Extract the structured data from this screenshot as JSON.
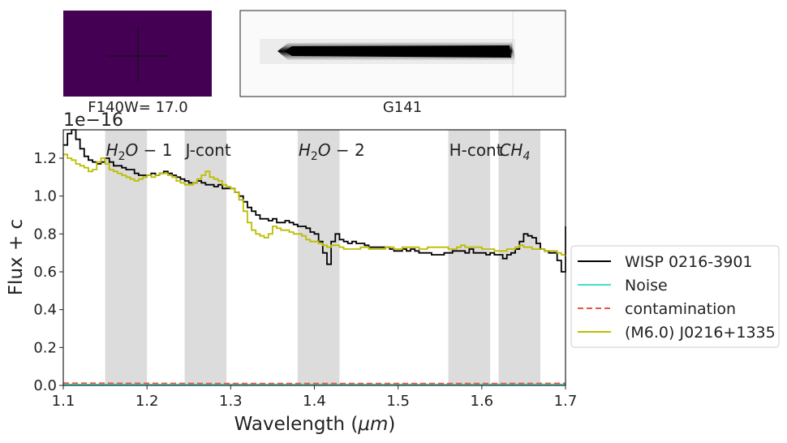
{
  "thumbnails": {
    "direct_label": "F140W= 17.0",
    "grism_label": "G141"
  },
  "chart_data": {
    "type": "line",
    "title": "",
    "xlabel": "Wavelength ($\\mu m$)",
    "ylabel": "Flux + c",
    "offset_text": "1e−16",
    "xlim": [
      1.1,
      1.7
    ],
    "ylim": [
      0.0,
      1.35
    ],
    "xticks": [
      "1.1",
      "1.2",
      "1.3",
      "1.4",
      "1.5",
      "1.6",
      "1.7"
    ],
    "yticks": [
      "0.0",
      "0.2",
      "0.4",
      "0.6",
      "0.8",
      "1.0",
      "1.2"
    ],
    "grid": false,
    "legend_position": "right-outside",
    "bands": [
      {
        "label": "H2O − 1",
        "range": [
          1.15,
          1.2
        ]
      },
      {
        "label": "J-cont",
        "range": [
          1.245,
          1.295
        ]
      },
      {
        "label": "H2O − 2",
        "range": [
          1.38,
          1.43
        ]
      },
      {
        "label": "H-cont",
        "range": [
          1.56,
          1.61
        ]
      },
      {
        "label": "CH4",
        "range": [
          1.62,
          1.67
        ]
      }
    ],
    "series": [
      {
        "name": "WISP 0216-3901",
        "color": "#000000",
        "style": "step",
        "x": [
          1.1,
          1.105,
          1.11,
          1.115,
          1.12,
          1.125,
          1.13,
          1.135,
          1.14,
          1.145,
          1.15,
          1.155,
          1.16,
          1.165,
          1.17,
          1.175,
          1.18,
          1.185,
          1.19,
          1.195,
          1.2,
          1.205,
          1.21,
          1.215,
          1.22,
          1.225,
          1.23,
          1.235,
          1.24,
          1.245,
          1.25,
          1.255,
          1.26,
          1.265,
          1.27,
          1.275,
          1.28,
          1.285,
          1.29,
          1.295,
          1.3,
          1.305,
          1.31,
          1.315,
          1.32,
          1.325,
          1.33,
          1.335,
          1.34,
          1.345,
          1.35,
          1.355,
          1.36,
          1.365,
          1.37,
          1.375,
          1.38,
          1.385,
          1.39,
          1.395,
          1.4,
          1.405,
          1.41,
          1.415,
          1.42,
          1.425,
          1.43,
          1.435,
          1.44,
          1.445,
          1.45,
          1.455,
          1.46,
          1.465,
          1.47,
          1.475,
          1.48,
          1.485,
          1.49,
          1.495,
          1.5,
          1.505,
          1.51,
          1.515,
          1.52,
          1.525,
          1.53,
          1.535,
          1.54,
          1.545,
          1.55,
          1.555,
          1.56,
          1.565,
          1.57,
          1.575,
          1.58,
          1.585,
          1.59,
          1.595,
          1.6,
          1.605,
          1.61,
          1.615,
          1.62,
          1.625,
          1.63,
          1.635,
          1.64,
          1.645,
          1.65,
          1.655,
          1.66,
          1.665,
          1.67,
          1.675,
          1.68,
          1.685,
          1.69,
          1.695,
          1.7
        ],
        "y": [
          1.27,
          1.33,
          1.35,
          1.3,
          1.25,
          1.21,
          1.19,
          1.18,
          1.17,
          1.18,
          1.2,
          1.18,
          1.16,
          1.16,
          1.15,
          1.14,
          1.14,
          1.12,
          1.11,
          1.11,
          1.11,
          1.12,
          1.11,
          1.12,
          1.13,
          1.12,
          1.11,
          1.1,
          1.09,
          1.08,
          1.07,
          1.07,
          1.08,
          1.07,
          1.06,
          1.06,
          1.05,
          1.06,
          1.04,
          1.04,
          1.04,
          1.02,
          1.0,
          0.97,
          0.94,
          0.92,
          0.9,
          0.88,
          0.88,
          0.87,
          0.88,
          0.86,
          0.86,
          0.87,
          0.86,
          0.85,
          0.84,
          0.84,
          0.83,
          0.81,
          0.8,
          0.76,
          0.7,
          0.64,
          0.76,
          0.8,
          0.77,
          0.76,
          0.75,
          0.76,
          0.75,
          0.75,
          0.74,
          0.73,
          0.73,
          0.73,
          0.73,
          0.73,
          0.72,
          0.71,
          0.71,
          0.72,
          0.71,
          0.72,
          0.71,
          0.7,
          0.7,
          0.7,
          0.69,
          0.69,
          0.69,
          0.7,
          0.7,
          0.71,
          0.71,
          0.71,
          0.7,
          0.72,
          0.7,
          0.7,
          0.7,
          0.69,
          0.7,
          0.69,
          0.69,
          0.67,
          0.69,
          0.7,
          0.72,
          0.76,
          0.8,
          0.79,
          0.78,
          0.75,
          0.72,
          0.71,
          0.7,
          0.7,
          0.66,
          0.6,
          0.84
        ]
      },
      {
        "name": "Noise",
        "color": "#40e0d0",
        "style": "step",
        "x": [
          1.1,
          1.2,
          1.3,
          1.4,
          1.5,
          1.6,
          1.7
        ],
        "y": [
          0.005,
          0.005,
          0.005,
          0.005,
          0.005,
          0.006,
          0.008
        ]
      },
      {
        "name": "contamination",
        "color": "#e8543f",
        "style": "dashed",
        "x": [
          1.1,
          1.2,
          1.3,
          1.4,
          1.5,
          1.6,
          1.7
        ],
        "y": [
          0.012,
          0.011,
          0.01,
          0.01,
          0.01,
          0.01,
          0.011
        ]
      },
      {
        "name": "(M6.0) J0216+1335",
        "color": "#bdbd00",
        "style": "step",
        "x": [
          1.1,
          1.105,
          1.11,
          1.115,
          1.12,
          1.125,
          1.13,
          1.135,
          1.14,
          1.145,
          1.15,
          1.155,
          1.16,
          1.165,
          1.17,
          1.175,
          1.18,
          1.185,
          1.19,
          1.195,
          1.2,
          1.205,
          1.21,
          1.215,
          1.22,
          1.225,
          1.23,
          1.235,
          1.24,
          1.245,
          1.25,
          1.255,
          1.26,
          1.265,
          1.27,
          1.275,
          1.28,
          1.285,
          1.29,
          1.295,
          1.3,
          1.305,
          1.31,
          1.315,
          1.32,
          1.325,
          1.33,
          1.335,
          1.34,
          1.345,
          1.35,
          1.355,
          1.36,
          1.365,
          1.37,
          1.375,
          1.38,
          1.385,
          1.39,
          1.395,
          1.4,
          1.405,
          1.41,
          1.415,
          1.42,
          1.425,
          1.43,
          1.435,
          1.44,
          1.445,
          1.45,
          1.455,
          1.46,
          1.465,
          1.47,
          1.475,
          1.48,
          1.485,
          1.49,
          1.495,
          1.5,
          1.505,
          1.51,
          1.515,
          1.52,
          1.525,
          1.53,
          1.535,
          1.54,
          1.545,
          1.55,
          1.555,
          1.56,
          1.565,
          1.57,
          1.575,
          1.58,
          1.585,
          1.59,
          1.595,
          1.6,
          1.605,
          1.61,
          1.615,
          1.62,
          1.625,
          1.63,
          1.635,
          1.64,
          1.645,
          1.65,
          1.655,
          1.66,
          1.665,
          1.67,
          1.675,
          1.68,
          1.685,
          1.69,
          1.695,
          1.7
        ],
        "y": [
          1.22,
          1.2,
          1.19,
          1.17,
          1.16,
          1.15,
          1.13,
          1.14,
          1.18,
          1.2,
          1.17,
          1.14,
          1.13,
          1.12,
          1.11,
          1.1,
          1.09,
          1.08,
          1.09,
          1.1,
          1.11,
          1.1,
          1.11,
          1.12,
          1.12,
          1.11,
          1.1,
          1.08,
          1.07,
          1.06,
          1.06,
          1.07,
          1.09,
          1.11,
          1.13,
          1.1,
          1.09,
          1.08,
          1.06,
          1.05,
          1.04,
          1.02,
          0.98,
          0.92,
          0.86,
          0.82,
          0.8,
          0.79,
          0.78,
          0.8,
          0.84,
          0.83,
          0.82,
          0.82,
          0.81,
          0.8,
          0.8,
          0.79,
          0.77,
          0.76,
          0.76,
          0.75,
          0.74,
          0.73,
          0.74,
          0.74,
          0.73,
          0.72,
          0.72,
          0.72,
          0.72,
          0.73,
          0.73,
          0.72,
          0.72,
          0.72,
          0.72,
          0.73,
          0.73,
          0.72,
          0.72,
          0.73,
          0.73,
          0.73,
          0.73,
          0.72,
          0.72,
          0.73,
          0.73,
          0.73,
          0.73,
          0.73,
          0.72,
          0.72,
          0.73,
          0.74,
          0.73,
          0.73,
          0.73,
          0.73,
          0.72,
          0.72,
          0.72,
          0.71,
          0.71,
          0.71,
          0.72,
          0.72,
          0.73,
          0.74,
          0.73,
          0.73,
          0.72,
          0.72,
          0.72,
          0.71,
          0.71,
          0.71,
          0.7,
          0.69,
          0.68
        ]
      }
    ]
  }
}
